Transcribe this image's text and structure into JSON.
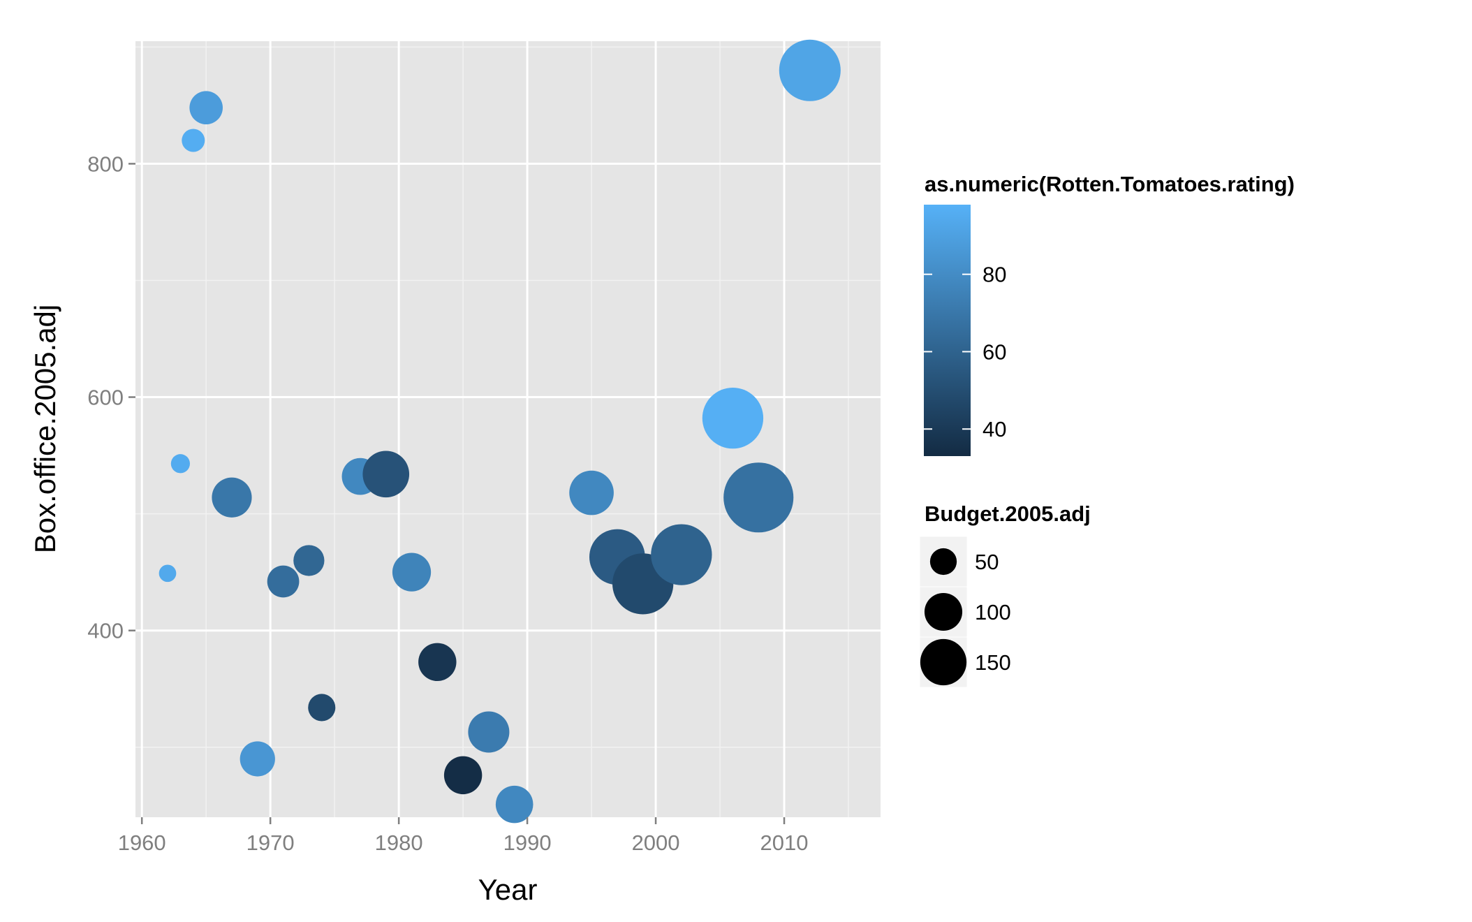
{
  "chart_data": {
    "type": "scatter",
    "xlabel": "Year",
    "ylabel": "Box.office.2005.adj",
    "xlim": [
      1959.5,
      2017.5
    ],
    "ylim": [
      240,
      905
    ],
    "x_ticks": [
      1960,
      1970,
      1980,
      1990,
      2000,
      2010
    ],
    "y_ticks": [
      400,
      600,
      800
    ],
    "x_tick_labels": [
      "1960",
      "1970",
      "1980",
      "1990",
      "2000",
      "2010"
    ],
    "y_tick_labels": [
      "400",
      "600",
      "800"
    ],
    "grid": true,
    "panel_background": "#e5e5e5",
    "grid_color": "#ffffff",
    "color_legend": {
      "title": "as.numeric(Rotten.Tomatoes.rating)",
      "scale_min": 33,
      "scale_max": 98,
      "ticks": [
        40,
        60,
        80
      ],
      "tick_labels": [
        "40",
        "60",
        "80"
      ],
      "low_color": "#132b43",
      "high_color": "#56b1f7",
      "placement": "right"
    },
    "size_legend": {
      "title": "Budget.2005.adj",
      "values": [
        50,
        100,
        150
      ],
      "labels": [
        "50",
        "100",
        "150"
      ],
      "placement": "right"
    },
    "points": [
      {
        "year": 1962,
        "box_office": 449,
        "rating": 94,
        "budget": 14
      },
      {
        "year": 1963,
        "box_office": 543,
        "rating": 95,
        "budget": 17
      },
      {
        "year": 1964,
        "box_office": 820,
        "rating": 96,
        "budget": 25
      },
      {
        "year": 1965,
        "box_office": 848,
        "rating": 88,
        "budget": 52
      },
      {
        "year": 1967,
        "box_office": 514,
        "rating": 70,
        "budget": 75
      },
      {
        "year": 1969,
        "box_office": 290,
        "rating": 85,
        "budget": 58
      },
      {
        "year": 1971,
        "box_office": 442,
        "rating": 65,
        "budget": 48
      },
      {
        "year": 1973,
        "box_office": 460,
        "rating": 62,
        "budget": 45
      },
      {
        "year": 1974,
        "box_office": 334,
        "rating": 48,
        "budget": 35
      },
      {
        "year": 1977,
        "box_office": 532,
        "rating": 78,
        "budget": 64
      },
      {
        "year": 1979,
        "box_office": 534,
        "rating": 52,
        "budget": 102
      },
      {
        "year": 1981,
        "box_office": 450,
        "rating": 76,
        "budget": 70
      },
      {
        "year": 1983,
        "box_office": 373,
        "rating": 38,
        "budget": 68
      },
      {
        "year": 1985,
        "box_office": 276,
        "rating": 34,
        "budget": 68
      },
      {
        "year": 1987,
        "box_office": 313,
        "rating": 72,
        "budget": 80
      },
      {
        "year": 1989,
        "box_office": 251,
        "rating": 78,
        "budget": 66
      },
      {
        "year": 1995,
        "box_office": 518,
        "rating": 78,
        "budget": 93
      },
      {
        "year": 1997,
        "box_office": 463,
        "rating": 56,
        "budget": 146
      },
      {
        "year": 1999,
        "box_office": 440,
        "rating": 48,
        "budget": 175
      },
      {
        "year": 2002,
        "box_office": 465,
        "rating": 60,
        "budget": 175
      },
      {
        "year": 2006,
        "box_office": 582,
        "rating": 97,
        "budget": 175
      },
      {
        "year": 2008,
        "box_office": 514,
        "rating": 67,
        "budget": 230
      },
      {
        "year": 2012,
        "box_office": 880,
        "rating": 92,
        "budget": 178
      }
    ]
  }
}
